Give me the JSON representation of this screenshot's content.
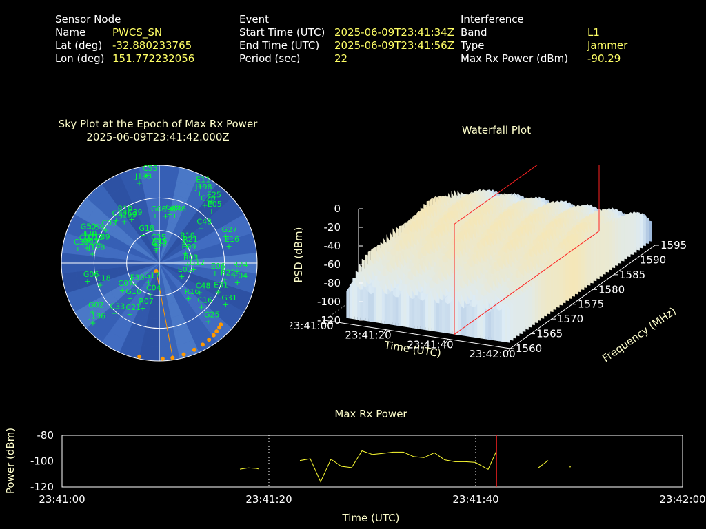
{
  "header": {
    "sensor": {
      "title": "Sensor Node",
      "rows": [
        {
          "label": "Name",
          "value": "PWCS_SN"
        },
        {
          "label": "Lat (deg)",
          "value": "-32.880233765"
        },
        {
          "label": "Lon (deg)",
          "value": "151.772232056"
        }
      ]
    },
    "event": {
      "title": "Event",
      "rows": [
        {
          "label": "Start Time (UTC)",
          "value": "2025-06-09T23:41:34Z"
        },
        {
          "label": "End Time (UTC)",
          "value": "2025-06-09T23:41:56Z"
        },
        {
          "label": "Period (sec)",
          "value": "22"
        }
      ]
    },
    "interference": {
      "title": "Interference",
      "rows": [
        {
          "label": "Band",
          "value": "L1"
        },
        {
          "label": "Type",
          "value": "Jammer"
        },
        {
          "label": "Max Rx Power (dBm)",
          "value": "-90.29"
        }
      ]
    }
  },
  "chart_data": [
    {
      "type": "scatter",
      "subtype": "polar-sky-plot",
      "title": "Sky Plot at the Epoch of Max Rx Power",
      "subtitle": "2025-06-09T23:41:42.000Z",
      "colors": {
        "background": "#3a62b8",
        "labels": "#00ff33",
        "track": "#ff9900"
      },
      "satellites": [
        {
          "id": "C55",
          "az": -8,
          "el": 8
        },
        {
          "id": "J193",
          "az": -14,
          "el": 14
        },
        {
          "id": "E11",
          "az": 28,
          "el": 10
        },
        {
          "id": "J198",
          "az": 30,
          "el": 16
        },
        {
          "id": "E25",
          "az": 40,
          "el": 16
        },
        {
          "id": "C20",
          "az": 38,
          "el": 22
        },
        {
          "id": "E05",
          "az": 45,
          "el": 22
        },
        {
          "id": "R10",
          "az": -38,
          "el": 34
        },
        {
          "id": "C19",
          "az": -45,
          "el": 34
        },
        {
          "id": "J199",
          "az": -40,
          "el": 40
        },
        {
          "id": "C39",
          "az": -32,
          "el": 42
        },
        {
          "id": "G08",
          "az": -5,
          "el": 46
        },
        {
          "id": "C36",
          "az": 8,
          "el": 46
        },
        {
          "id": "C08",
          "az": 12,
          "el": 44
        },
        {
          "id": "G36",
          "az": 18,
          "el": 44
        },
        {
          "id": "G27",
          "az": 68,
          "el": 24
        },
        {
          "id": "C48",
          "az": 50,
          "el": 40
        },
        {
          "id": "E16",
          "az": 76,
          "el": 24
        },
        {
          "id": "G50",
          "az": -68,
          "el": 16
        },
        {
          "id": "C59",
          "az": -66,
          "el": 24
        },
        {
          "id": "J20",
          "az": -72,
          "el": 22
        },
        {
          "id": "C03",
          "az": -58,
          "el": 32
        },
        {
          "id": "C13",
          "az": -74,
          "el": 26
        },
        {
          "id": "G01",
          "az": -78,
          "el": 22
        },
        {
          "id": "C02",
          "az": -76,
          "el": 18
        },
        {
          "id": "C36b",
          "az": -80,
          "el": 14
        },
        {
          "id": "C39b",
          "az": -72,
          "el": 32
        },
        {
          "id": "J198b",
          "az": -82,
          "el": 28
        },
        {
          "id": "G18",
          "az": -30,
          "el": 60
        },
        {
          "id": "C25",
          "az": -12,
          "el": 72
        },
        {
          "id": "C15",
          "az": -10,
          "el": 76
        },
        {
          "id": "C30",
          "az": -15,
          "el": 78
        },
        {
          "id": "G17",
          "az": -150,
          "el": 70
        },
        {
          "id": "E30",
          "az": -130,
          "el": 60
        },
        {
          "id": "R19",
          "az": 50,
          "el": 60
        },
        {
          "id": "R21",
          "az": 58,
          "el": 60
        },
        {
          "id": "E09",
          "az": 70,
          "el": 64
        },
        {
          "id": "R03",
          "az": 92,
          "el": 64
        },
        {
          "id": "G12",
          "az": 100,
          "el": 58
        },
        {
          "id": "E01",
          "az": 120,
          "el": 66
        },
        {
          "id": "E06",
          "az": 100,
          "el": 38
        },
        {
          "id": "R22",
          "az": 104,
          "el": 28
        },
        {
          "id": "R24",
          "az": 96,
          "el": 18
        },
        {
          "id": "E04",
          "az": 104,
          "el": 16
        },
        {
          "id": "G31",
          "az": 122,
          "el": 18
        },
        {
          "id": "E31",
          "az": 116,
          "el": 30
        },
        {
          "id": "C48b",
          "az": 126,
          "el": 44
        },
        {
          "id": "R16",
          "az": 140,
          "el": 48
        },
        {
          "id": "C16",
          "az": 136,
          "el": 34
        },
        {
          "id": "G25",
          "az": 140,
          "el": 20
        },
        {
          "id": "G06",
          "az": -104,
          "el": 22
        },
        {
          "id": "C18",
          "az": -110,
          "el": 32
        },
        {
          "id": "C07",
          "az": -126,
          "el": 48
        },
        {
          "id": "G16",
          "az": -140,
          "el": 48
        },
        {
          "id": "R07",
          "az": -160,
          "el": 46
        },
        {
          "id": "C21",
          "az": -150,
          "el": 36
        },
        {
          "id": "C33",
          "az": -138,
          "el": 28
        },
        {
          "id": "G02",
          "az": -126,
          "el": 14
        },
        {
          "id": "J186",
          "az": -132,
          "el": 8
        },
        {
          "id": "C04",
          "az": -164,
          "el": 60
        }
      ],
      "jammer_track": [
        {
          "az": 178,
          "el": 2
        },
        {
          "az": 172,
          "el": 2
        },
        {
          "az": 165,
          "el": 3
        },
        {
          "az": 158,
          "el": 4
        },
        {
          "az": 152,
          "el": 5
        },
        {
          "az": 147,
          "el": 6
        },
        {
          "az": 143,
          "el": 7
        },
        {
          "az": 140,
          "el": 8
        },
        {
          "az": 137,
          "el": 9
        },
        {
          "az": 135,
          "el": 10
        },
        {
          "az": -168,
          "el": 2
        },
        {
          "az": -160,
          "el": 82
        }
      ]
    },
    {
      "type": "area",
      "subtype": "3d-waterfall",
      "title": "Waterfall Plot",
      "xlabel": "Time (UTC)",
      "ylabel": "Frequency (MHz)",
      "zlabel": "PSD (dBm)",
      "x_ticks": [
        "23:41:00",
        "23:41:20",
        "23:41:40",
        "23:42:00"
      ],
      "y_ticks": [
        "1560",
        "1565",
        "1570",
        "1575",
        "1580",
        "1585",
        "1590",
        "1595"
      ],
      "z_ticks": [
        "0",
        "-20",
        "-40",
        "-60",
        "-80",
        "-100",
        "-120"
      ],
      "xlim": [
        "23:41:00",
        "23:42:00"
      ],
      "ylim": [
        1560,
        1595
      ],
      "zlim": [
        -120,
        0
      ],
      "highlight_time": "23:41:42"
    },
    {
      "type": "line",
      "title": "Max Rx Power",
      "xlabel": "Time (UTC)",
      "ylabel": "Power (dBm)",
      "x_ticks": [
        "23:41:00",
        "23:41:20",
        "23:41:40",
        "23:42:00"
      ],
      "y_ticks": [
        "-80",
        "-100",
        "-120"
      ],
      "ylim": [
        -120,
        -80
      ],
      "xlim_seconds": [
        0,
        60
      ],
      "marker_time_s": 42,
      "segments": [
        [
          [
            17.2,
            -106.2
          ],
          [
            18.0,
            -105.2
          ],
          [
            18.8,
            -105.6
          ],
          [
            19.0,
            -106.0
          ]
        ],
        [
          [
            23.0,
            -99.5
          ],
          [
            24.0,
            -98.2
          ],
          [
            25.0,
            -116.0
          ],
          [
            26.0,
            -98.5
          ],
          [
            27.0,
            -104.0
          ],
          [
            28.0,
            -105.0
          ],
          [
            29.0,
            -92.0
          ],
          [
            30.0,
            -94.8
          ],
          [
            31.0,
            -94.0
          ],
          [
            32.0,
            -93.0
          ],
          [
            33.0,
            -93.0
          ],
          [
            34.0,
            -96.5
          ],
          [
            35.0,
            -97.2
          ],
          [
            36.0,
            -93.5
          ],
          [
            37.0,
            -99.0
          ],
          [
            38.0,
            -100.5
          ],
          [
            39.0,
            -100.5
          ],
          [
            40.0,
            -101.0
          ],
          [
            40.2,
            -102.0
          ],
          [
            41.2,
            -106.3
          ],
          [
            42.0,
            -92.2
          ]
        ],
        [
          [
            46.0,
            -105.5
          ],
          [
            47.0,
            -99.5
          ]
        ],
        [
          [
            49.0,
            -104.5
          ],
          [
            49.2,
            -104.4
          ]
        ]
      ]
    }
  ]
}
